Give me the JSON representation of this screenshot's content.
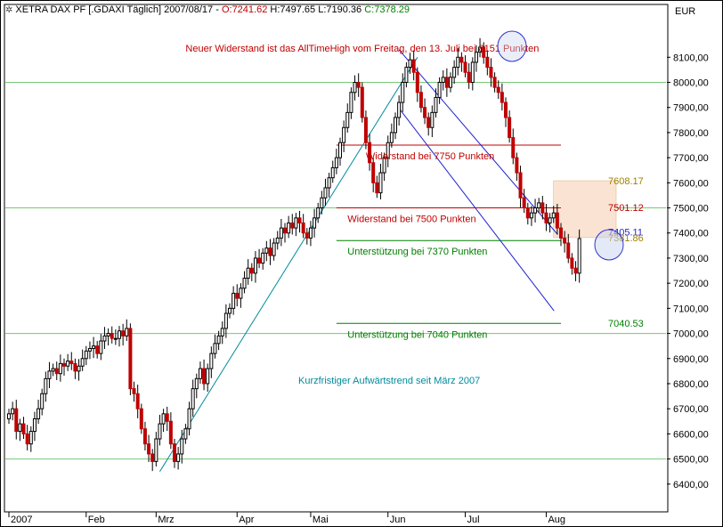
{
  "header": {
    "instrument": "XETRA DAX PF [.GDAXI  Täglich] 2007/08/17",
    "open_label": "O:",
    "open": "7241.62",
    "high_label": "H:",
    "high": "7497.65",
    "low_label": "L:",
    "low": "7190.36",
    "close_label": "C:",
    "close": "7378.29",
    "currency": "EUR",
    "settings_icon": "gear-icon"
  },
  "colors": {
    "up": "#1a1a1a",
    "down": "#c00000",
    "resistance": "#c00000",
    "support": "#008000",
    "trend": "#008b9b",
    "channel": "#1f1fd0",
    "fib_fill": "#fbe3d4",
    "grid": "#78c878",
    "highlight_ellipse": "#3333cc"
  },
  "chart_data": {
    "type": "candlestick",
    "title": "",
    "y_unit": "EUR",
    "ylim": [
      6300,
      8250
    ],
    "y_ticks": [
      6400,
      6500,
      6600,
      6700,
      6800,
      6900,
      7000,
      7100,
      7200,
      7300,
      7400,
      7500,
      7600,
      7700,
      7800,
      7900,
      8000,
      8100
    ],
    "y_tick_labels": [
      "6400,00",
      "6500,00",
      "6600,00",
      "6700,00",
      "6800,00",
      "6900,00",
      "7000,00",
      "7100,00",
      "7200,00",
      "7300,00",
      "7400,00",
      "7500,00",
      "7600,00",
      "7700,00",
      "7800,00",
      "7900,00",
      "8000,00",
      "8100,00"
    ],
    "horizontal_grid_levels": [
      6500,
      7000,
      7500,
      8000
    ],
    "x_range": [
      0,
      165
    ],
    "month_labels": [
      {
        "label": "2007",
        "x": 0
      },
      {
        "label": "Feb",
        "x": 21
      },
      {
        "label": "Mrz",
        "x": 40
      },
      {
        "label": "Apr",
        "x": 62
      },
      {
        "label": "Mai",
        "x": 82
      },
      {
        "label": "Jun",
        "x": 103
      },
      {
        "label": "Jul",
        "x": 124
      },
      {
        "label": "Aug",
        "x": 146
      }
    ],
    "candles_close_path": [
      6680,
      6700,
      6610,
      6640,
      6600,
      6560,
      6610,
      6660,
      6700,
      6760,
      6820,
      6850,
      6860,
      6840,
      6880,
      6870,
      6890,
      6880,
      6850,
      6870,
      6900,
      6930,
      6940,
      6950,
      6920,
      6970,
      6990,
      7000,
      6980,
      6980,
      7010,
      6990,
      7020,
      6780,
      6760,
      6700,
      6620,
      6560,
      6520,
      6490,
      6580,
      6640,
      6680,
      6650,
      6560,
      6490,
      6520,
      6580,
      6620,
      6700,
      6780,
      6820,
      6860,
      6800,
      6860,
      6920,
      6960,
      6990,
      7020,
      7080,
      7100,
      7160,
      7140,
      7180,
      7220,
      7260,
      7240,
      7300,
      7280,
      7320,
      7340,
      7310,
      7360,
      7380,
      7420,
      7400,
      7440,
      7420,
      7460,
      7440,
      7400,
      7380,
      7420,
      7460,
      7500,
      7540,
      7580,
      7620,
      7660,
      7700,
      7760,
      7820,
      7880,
      7960,
      8000,
      7980,
      7860,
      7760,
      7680,
      7600,
      7560,
      7640,
      7700,
      7760,
      7800,
      7860,
      7920,
      8000,
      8060,
      8090,
      8040,
      7960,
      7900,
      7860,
      7820,
      7880,
      7940,
      8000,
      8020,
      7980,
      8020,
      8060,
      8100,
      8080,
      8040,
      8000,
      8080,
      8120,
      8140,
      8100,
      8060,
      8020,
      7980,
      7960,
      7920,
      7860,
      7780,
      7700,
      7640,
      7540,
      7500,
      7460,
      7480,
      7500,
      7520,
      7480,
      7440,
      7460,
      7480,
      7420,
      7380,
      7360,
      7300,
      7260,
      7240,
      7378
    ],
    "levels": [
      {
        "name": "resistance-8151",
        "value": 8151,
        "color": "resistance",
        "label": "Neuer Widerstand ist das AllTimeHigh vom Freitag, den 13. Juli bei 8151 Punkten",
        "label_x": 48
      },
      {
        "name": "resistance-7750",
        "value": 7750,
        "color": "resistance",
        "label": "Widerstand bei 7750 Punkten",
        "label_x": 97,
        "x_from": 89,
        "x_to": 150
      },
      {
        "name": "resistance-7500",
        "value": 7500,
        "color": "resistance",
        "label": "Widerstand bei 7500 Punkten",
        "label_x": 92,
        "x_from": 89,
        "x_to": 150
      },
      {
        "name": "support-7370",
        "value": 7370,
        "color": "support",
        "label": "Unterstützung bei 7370 Punkten",
        "label_x": 92,
        "x_from": 89,
        "x_to": 150
      },
      {
        "name": "support-7040",
        "value": 7040,
        "color": "support",
        "label": "Unterstützung bei 7040 Punkten",
        "label_x": 92,
        "x_from": 89,
        "x_to": 150
      }
    ],
    "fib_box": {
      "top": 7608.17,
      "bottom": 7381.86,
      "x_from": 148,
      "x_to": 165
    },
    "fib_labels": [
      "7608.17",
      "7501.12",
      "7405.11",
      "7381.86",
      "7040.53"
    ],
    "trend_annotation": "Kurzfristiger Aufwärtstrend seit März 2007",
    "trendline": {
      "x1": 41,
      "y1": 6450,
      "x2": 111,
      "y2": 8100
    },
    "channel_upper": {
      "x1": 106,
      "y1": 8130,
      "x2": 123,
      "y2": 7500
    },
    "channel_lower": {
      "x1": 101,
      "y1": 7900,
      "x2": 122,
      "y2": 7090
    }
  }
}
